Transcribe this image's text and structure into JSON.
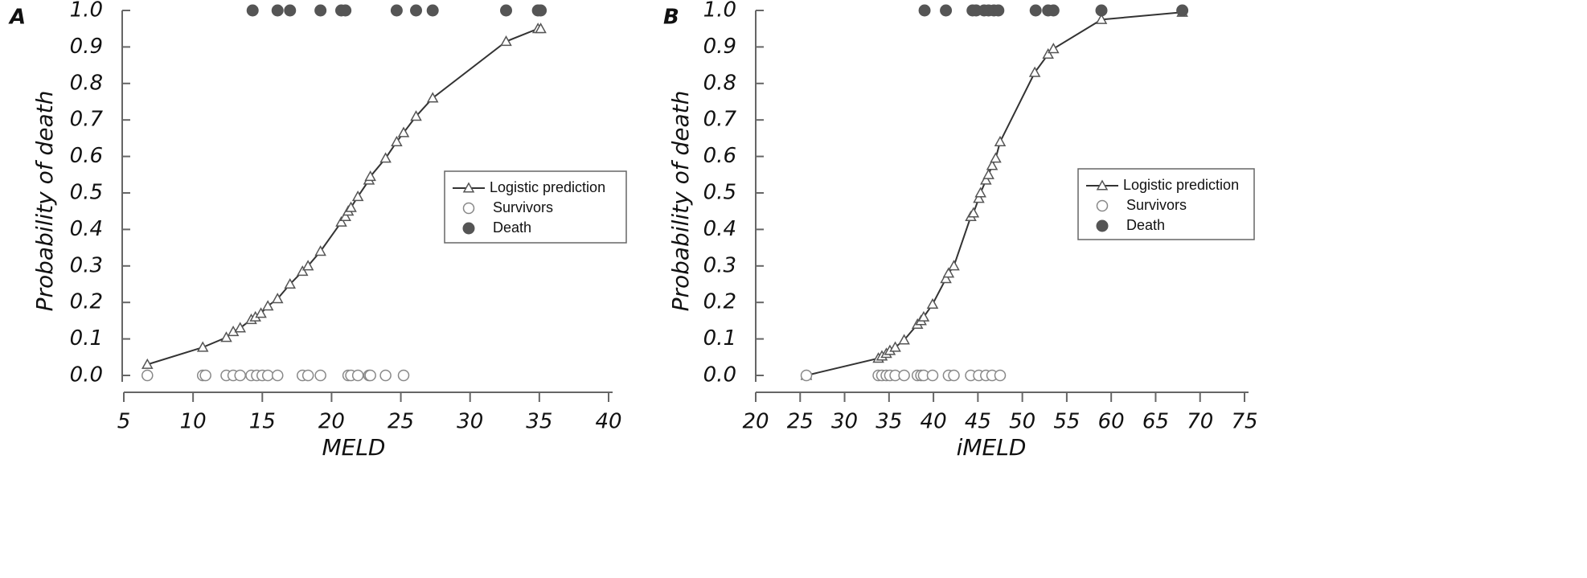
{
  "chart_data": [
    {
      "type": "line",
      "label": "A",
      "xlabel": "MELD",
      "ylabel": "Probability of death",
      "xlim": [
        5,
        40
      ],
      "xticks": [
        5,
        10,
        15,
        20,
        25,
        30,
        35,
        40
      ],
      "ylim": [
        0,
        1
      ],
      "yticks": [
        {
          "value": 0,
          "label": "0.0"
        },
        0.1,
        0.2,
        0.3,
        0.4,
        0.5,
        0.6,
        0.7,
        0.8,
        0.9,
        {
          "value": 1,
          "label": "1.0"
        }
      ],
      "series": [
        {
          "name": "Logistic prediction",
          "color": "#333333",
          "marker": "triangle",
          "x": [
            6.7,
            10.7,
            12.4,
            12.9,
            13.4,
            14.2,
            14.5,
            14.9,
            15.4,
            16.1,
            17.0,
            17.9,
            18.3,
            19.2,
            20.7,
            21.0,
            21.2,
            21.4,
            21.9,
            22.7,
            22.8,
            23.9,
            24.7,
            25.2,
            26.1,
            27.3,
            32.6,
            34.9,
            35.1
          ],
          "values": [
            0.03,
            0.077,
            0.104,
            0.12,
            0.13,
            0.153,
            0.16,
            0.17,
            0.19,
            0.21,
            0.25,
            0.285,
            0.3,
            0.34,
            0.42,
            0.435,
            0.45,
            0.46,
            0.49,
            0.535,
            0.545,
            0.595,
            0.64,
            0.665,
            0.71,
            0.76,
            0.915,
            0.95,
            0.95
          ]
        },
        {
          "name": "Survivors",
          "color": "#888888",
          "marker": "open-circle",
          "x": [
            6.7,
            10.7,
            10.9,
            12.4,
            12.9,
            13.4,
            14.2,
            14.6,
            15.0,
            15.4,
            16.1,
            17.9,
            18.3,
            19.2,
            21.2,
            21.4,
            21.9,
            22.7,
            22.8,
            23.9,
            25.2
          ],
          "values": [
            0,
            0,
            0,
            0,
            0,
            0,
            0,
            0,
            0,
            0,
            0,
            0,
            0,
            0,
            0,
            0,
            0,
            0,
            0,
            0,
            0
          ]
        },
        {
          "name": "Death",
          "color": "#555555",
          "marker": "filled-circle",
          "x": [
            14.3,
            16.1,
            17.0,
            19.2,
            20.7,
            21.0,
            24.7,
            26.1,
            27.3,
            32.6,
            34.9,
            35.1
          ],
          "values": [
            1,
            1,
            1,
            1,
            1,
            1,
            1,
            1,
            1,
            1,
            1,
            1
          ]
        }
      ]
    },
    {
      "type": "line",
      "label": "B",
      "xlabel": "iMELD",
      "ylabel": "Probability of death",
      "xlim": [
        20,
        75
      ],
      "xticks": [
        20,
        25,
        30,
        35,
        40,
        45,
        50,
        55,
        60,
        65,
        70,
        75
      ],
      "ylim": [
        0,
        1
      ],
      "yticks": [
        {
          "value": 0,
          "label": "0.0"
        },
        0.1,
        0.2,
        0.3,
        0.4,
        0.5,
        0.6,
        0.7,
        0.8,
        0.9,
        {
          "value": 1,
          "label": "1.0"
        }
      ],
      "series": [
        {
          "name": "Logistic prediction",
          "color": "#333333",
          "marker": "triangle",
          "x": [
            25.7,
            33.8,
            34.2,
            34.7,
            35.1,
            35.7,
            36.7,
            38.2,
            38.6,
            38.9,
            39.9,
            41.4,
            41.7,
            42.3,
            44.2,
            44.5,
            45.1,
            45.3,
            45.9,
            46.2,
            46.6,
            47.0,
            47.5,
            51.4,
            52.9,
            53.5,
            58.9,
            68.0
          ],
          "values": [
            0.0,
            0.047,
            0.053,
            0.06,
            0.068,
            0.077,
            0.097,
            0.14,
            0.15,
            0.16,
            0.195,
            0.265,
            0.28,
            0.3,
            0.435,
            0.445,
            0.485,
            0.5,
            0.535,
            0.55,
            0.575,
            0.595,
            0.64,
            0.83,
            0.88,
            0.895,
            0.975,
            0.995
          ]
        },
        {
          "name": "Survivors",
          "color": "#888888",
          "marker": "open-circle",
          "x": [
            25.7,
            33.8,
            34.2,
            34.7,
            35.1,
            35.7,
            36.7,
            38.2,
            38.6,
            38.9,
            39.9,
            41.7,
            42.3,
            44.2,
            45.1,
            45.9,
            46.6,
            47.5
          ],
          "values": [
            0,
            0,
            0,
            0,
            0,
            0,
            0,
            0,
            0,
            0,
            0,
            0,
            0,
            0,
            0,
            0,
            0,
            0
          ]
        },
        {
          "name": "Death",
          "color": "#555555",
          "marker": "filled-circle",
          "x": [
            39.0,
            41.4,
            44.4,
            44.8,
            45.7,
            46.2,
            46.8,
            47.3,
            51.5,
            52.9,
            53.5,
            58.9,
            68.0
          ],
          "values": [
            1,
            1,
            1,
            1,
            1,
            1,
            1,
            1,
            1,
            1,
            1,
            1,
            1
          ]
        }
      ]
    }
  ]
}
